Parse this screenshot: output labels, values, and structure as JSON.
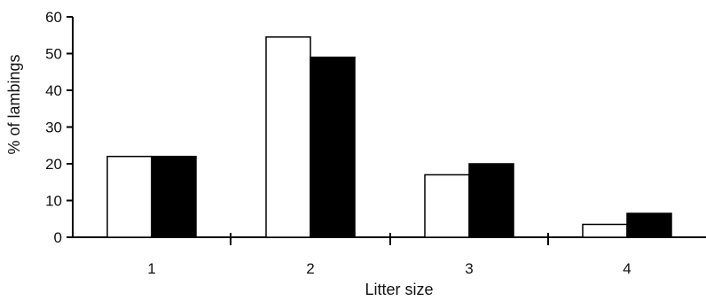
{
  "chart_data": {
    "type": "bar",
    "title": "",
    "xlabel": "Litter size",
    "ylabel": "% of lambings",
    "categories": [
      "1",
      "2",
      "3",
      "4"
    ],
    "ylim": [
      0,
      60
    ],
    "yticks": [
      "0",
      "10",
      "20",
      "30",
      "40",
      "50",
      "60"
    ],
    "grid": false,
    "legend": "none",
    "series": [
      {
        "fill": "#ffffff",
        "values": [
          22,
          54.5,
          17,
          3.5
        ]
      },
      {
        "fill": "#000000",
        "values": [
          22,
          49,
          20,
          6.5
        ]
      }
    ]
  }
}
